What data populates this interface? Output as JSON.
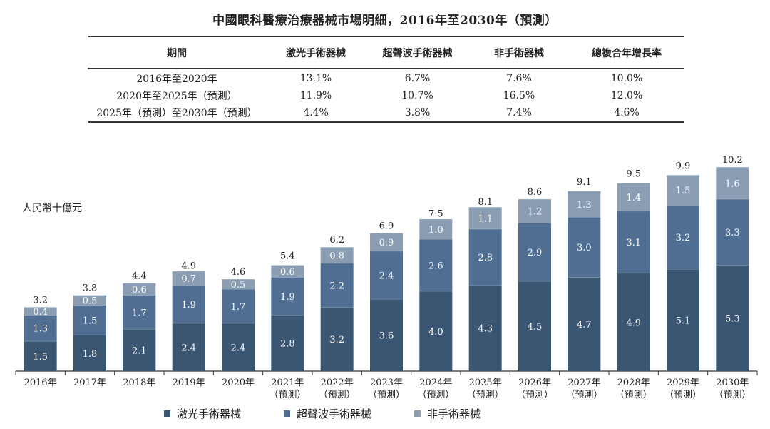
{
  "title": "中國眼科醫療治療器械市場明細，2016年至2030年（預測）",
  "table": {
    "headers": [
      "期間",
      "激光手術器械",
      "超聲波手術器械",
      "非手術器械",
      "總複合年增長率"
    ],
    "rows": [
      [
        "2016年至2020年",
        "13.1%",
        "6.7%",
        "7.6%",
        "10.0%"
      ],
      [
        "2020年至2025年（預測）",
        "11.9%",
        "10.7%",
        "16.5%",
        "12.0%"
      ],
      [
        "2025年（預測）至2030年（預測）",
        "4.4%",
        "3.8%",
        "7.4%",
        "4.6%"
      ]
    ]
  },
  "colors": {
    "laser": "#3b5673",
    "ultrasound": "#4f6e91",
    "non_surgical": "#8a9db3",
    "axis": "#333333",
    "label_dark": "#ffffff"
  },
  "chart_data": {
    "type": "bar",
    "stacked": true,
    "unit_label": "人民幣十億元",
    "categories": [
      "2016年",
      "2017年",
      "2018年",
      "2019年",
      "2020年",
      "2021年",
      "2022年",
      "2023年",
      "2024年",
      "2025年",
      "2026年",
      "2027年",
      "2028年",
      "2029年",
      "2030年"
    ],
    "category_sublabels": [
      "",
      "",
      "",
      "",
      "",
      "（預測）",
      "（預測）",
      "（預測）",
      "（預測）",
      "（預測）",
      "（預測）",
      "（預測）",
      "（預測）",
      "（預測）",
      "（預測）"
    ],
    "series": [
      {
        "name": "激光手術器械",
        "color": "#3b5673",
        "values": [
          1.5,
          1.8,
          2.1,
          2.4,
          2.4,
          2.8,
          3.2,
          3.6,
          4.0,
          4.3,
          4.5,
          4.7,
          4.9,
          5.1,
          5.3
        ]
      },
      {
        "name": "超聲波手術器械",
        "color": "#4f6e91",
        "values": [
          1.3,
          1.5,
          1.7,
          1.9,
          1.7,
          1.9,
          2.2,
          2.4,
          2.6,
          2.8,
          2.9,
          3.0,
          3.1,
          3.2,
          3.3
        ]
      },
      {
        "name": "非手術器械",
        "color": "#8a9db3",
        "values": [
          0.4,
          0.5,
          0.6,
          0.7,
          0.5,
          0.6,
          0.8,
          0.9,
          1.0,
          1.1,
          1.2,
          1.3,
          1.4,
          1.5,
          1.6
        ]
      }
    ],
    "totals": [
      3.2,
      3.8,
      4.4,
      4.9,
      4.6,
      5.4,
      6.2,
      6.9,
      7.5,
      8.1,
      8.6,
      9.1,
      9.5,
      9.9,
      10.2
    ],
    "ylim": [
      0,
      10.2
    ],
    "grid": false,
    "legend_position": "bottom"
  }
}
